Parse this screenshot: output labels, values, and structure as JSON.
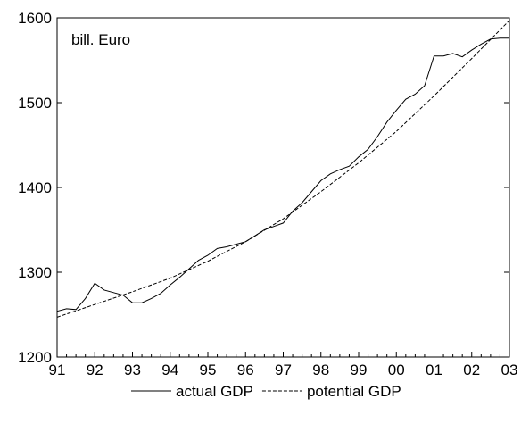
{
  "chart_data": {
    "type": "line",
    "annotation": "bill. Euro",
    "ylim": [
      1200,
      1600
    ],
    "xlim": [
      1991.0,
      2003.0
    ],
    "y_ticks": [
      1200,
      1300,
      1400,
      1500,
      1600
    ],
    "x_ticks": [
      {
        "value": 1991,
        "label": "91"
      },
      {
        "value": 1992,
        "label": "92"
      },
      {
        "value": 1993,
        "label": "93"
      },
      {
        "value": 1994,
        "label": "94"
      },
      {
        "value": 1995,
        "label": "95"
      },
      {
        "value": 1996,
        "label": "96"
      },
      {
        "value": 1997,
        "label": "97"
      },
      {
        "value": 1998,
        "label": "98"
      },
      {
        "value": 1999,
        "label": "99"
      },
      {
        "value": 2000,
        "label": "00"
      },
      {
        "value": 2001,
        "label": "01"
      },
      {
        "value": 2002,
        "label": "02"
      },
      {
        "value": 2003,
        "label": "03"
      }
    ],
    "grid": false,
    "legend_position": "bottom",
    "series": [
      {
        "name": "actual GDP",
        "style": "solid",
        "x": [
          1991.0,
          1991.25,
          1991.5,
          1991.75,
          1992.0,
          1992.25,
          1992.5,
          1992.75,
          1993.0,
          1993.25,
          1993.5,
          1993.75,
          1994.0,
          1994.25,
          1994.5,
          1994.75,
          1995.0,
          1995.25,
          1995.5,
          1995.75,
          1996.0,
          1996.25,
          1996.5,
          1996.75,
          1997.0,
          1997.25,
          1997.5,
          1997.75,
          1998.0,
          1998.25,
          1998.5,
          1998.75,
          1999.0,
          1999.25,
          1999.5,
          1999.75,
          2000.0,
          2000.25,
          2000.5,
          2000.75,
          2001.0,
          2001.25,
          2001.5,
          2001.75,
          2002.0,
          2002.25,
          2002.5,
          2002.75,
          2003.0
        ],
        "y": [
          1254,
          1257,
          1256,
          1269,
          1287,
          1279,
          1276,
          1273,
          1264,
          1264,
          1269,
          1275,
          1285,
          1294,
          1304,
          1314,
          1320,
          1328,
          1330,
          1333,
          1336,
          1343,
          1350,
          1354,
          1358,
          1372,
          1382,
          1395,
          1408,
          1416,
          1421,
          1425,
          1436,
          1445,
          1460,
          1477,
          1491,
          1504,
          1510,
          1520,
          1555,
          1555,
          1558,
          1554,
          1562,
          1569,
          1575,
          1576,
          1576
        ]
      },
      {
        "name": "potential GDP",
        "style": "dashed",
        "x": [
          1991,
          1992,
          1993,
          1994,
          1995,
          1996,
          1997,
          1998,
          1999,
          2000,
          2001,
          2002,
          2003
        ],
        "y": [
          1247,
          1262,
          1277,
          1293,
          1313,
          1336,
          1363,
          1395,
          1429,
          1466,
          1508,
          1552,
          1597
        ]
      }
    ]
  }
}
